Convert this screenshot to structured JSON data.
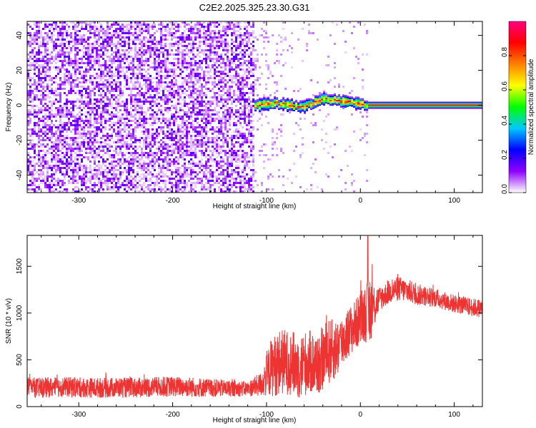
{
  "chart_data": [
    {
      "type": "heatmap",
      "title": "C2E2.2025.325.23.30.G31",
      "xlabel": "Height of straight line (km)",
      "ylabel": "Frequency (Hz)",
      "xlim": [
        -355,
        130
      ],
      "ylim": [
        -50,
        48
      ],
      "xticks": [
        -300,
        -200,
        -100,
        0,
        100
      ],
      "yticks": [
        -40,
        -20,
        0,
        20,
        40
      ],
      "grid": false,
      "colorbar": {
        "label": "Normalized spectral amplitude",
        "range": [
          0,
          1
        ],
        "ticks": [
          0.0,
          0.2,
          0.4,
          0.6,
          0.8
        ],
        "colors": [
          "#ffffff",
          "#8f00ff",
          "#0000ff",
          "#00c8ff",
          "#00ff00",
          "#ffff00",
          "#ff8000",
          "#ff0000",
          "#ff0080"
        ]
      },
      "regions": [
        {
          "x_range": [
            -355,
            -113
          ],
          "freq_range": [
            -50,
            48
          ],
          "amplitude": "low noise"
        },
        {
          "x_range": [
            -113,
            8
          ],
          "center_freq": [
            [
              -113,
              0
            ],
            [
              -95,
              1
            ],
            [
              -60,
              -1
            ],
            [
              -40,
              4
            ],
            [
              -20,
              2
            ],
            [
              8,
              0
            ]
          ],
          "amplitude": "medium to high"
        },
        {
          "x_range": [
            8,
            130
          ],
          "center_freq": [
            [
              8,
              0
            ],
            [
              130,
              0
            ]
          ],
          "amplitude": "high"
        }
      ]
    },
    {
      "type": "line",
      "title": "",
      "xlabel": "Height of straight line (km)",
      "ylabel": "SNR (10 * v/v)",
      "xlim": [
        -355,
        130
      ],
      "ylim": [
        0,
        1830
      ],
      "xticks": [
        -300,
        -200,
        -100,
        0,
        100
      ],
      "yticks": [
        0,
        500,
        1000,
        1500
      ],
      "grid": false,
      "series": [
        {
          "color": "#ee3333",
          "x": [
            -355,
            -340,
            -320,
            -300,
            -280,
            -260,
            -240,
            -220,
            -200,
            -180,
            -160,
            -140,
            -120,
            -105,
            -95,
            -85,
            -75,
            -65,
            -55,
            -45,
            -35,
            -25,
            -15,
            -5,
            5,
            10,
            20,
            30,
            40,
            50,
            60,
            70,
            80,
            90,
            100,
            110,
            120,
            130
          ],
          "mean": [
            210,
            200,
            210,
            205,
            200,
            205,
            200,
            210,
            215,
            210,
            200,
            195,
            190,
            240,
            420,
            480,
            470,
            430,
            480,
            450,
            580,
            620,
            760,
            880,
            1000,
            1020,
            1150,
            1220,
            1260,
            1240,
            1200,
            1180,
            1160,
            1130,
            1100,
            1080,
            1060,
            1050
          ],
          "spread": [
            120,
            120,
            120,
            120,
            120,
            120,
            120,
            120,
            120,
            120,
            110,
            100,
            90,
            150,
            350,
            400,
            380,
            400,
            380,
            380,
            400,
            350,
            300,
            300,
            350,
            400,
            150,
            140,
            150,
            140,
            130,
            120,
            110,
            110,
            110,
            110,
            110,
            110
          ],
          "peak": {
            "x": 8,
            "y": 1820
          }
        }
      ]
    }
  ]
}
